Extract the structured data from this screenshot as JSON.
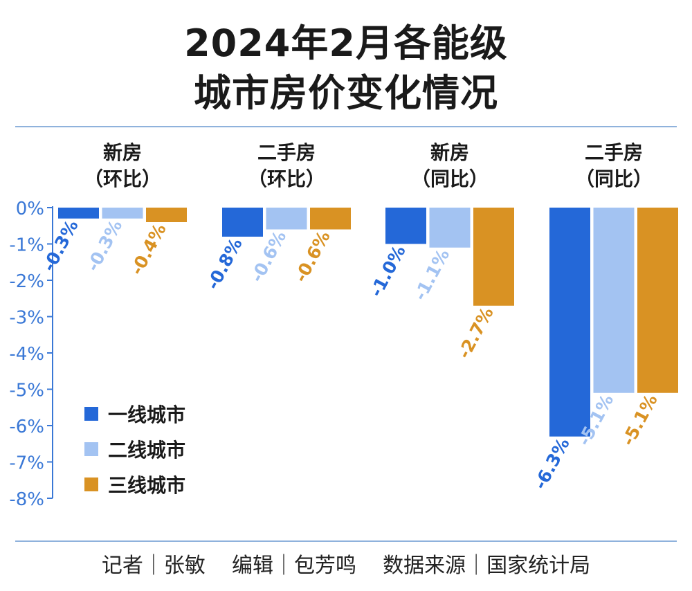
{
  "title_line1": "2024年2月各能级",
  "title_line2": "城市房价变化情况",
  "credit": "记者｜张敏    编辑｜包芳鸣    数据来源｜国家统计局",
  "colors": {
    "axis": "#3a78d6",
    "tier1": "#2468d8",
    "tier2": "#a3c3f2",
    "tier3": "#d99223",
    "rule": "#8fb2dc"
  },
  "chart_data": {
    "type": "bar",
    "groups": [
      {
        "line1": "新房",
        "line2": "（环比）"
      },
      {
        "line1": "二手房",
        "line2": "（环比）"
      },
      {
        "line1": "新房",
        "line2": "（同比）"
      },
      {
        "line1": "二手房",
        "line2": "（同比）"
      }
    ],
    "series": [
      {
        "name": "一线城市",
        "values": [
          -0.3,
          -0.8,
          -1.0,
          -6.3
        ],
        "labels": [
          "-0.3%",
          "-0.8%",
          "-1.0%",
          "-6.3%"
        ]
      },
      {
        "name": "二线城市",
        "values": [
          -0.3,
          -0.6,
          -1.1,
          -5.1
        ],
        "labels": [
          "-0.3%",
          "-0.6%",
          "-1.1%",
          "-5.1%"
        ]
      },
      {
        "name": "三线城市",
        "values": [
          -0.4,
          -0.6,
          -2.7,
          -5.1
        ],
        "labels": [
          "-0.4%",
          "-0.6%",
          "-2.7%",
          "-5.1%"
        ]
      }
    ],
    "y_ticks": [
      "0%",
      "-1%",
      "-2%",
      "-3%",
      "-4%",
      "-5%",
      "-6%",
      "-7%",
      "-8%"
    ],
    "ylim": [
      -8,
      0
    ],
    "legend_position": "bottom-left"
  }
}
